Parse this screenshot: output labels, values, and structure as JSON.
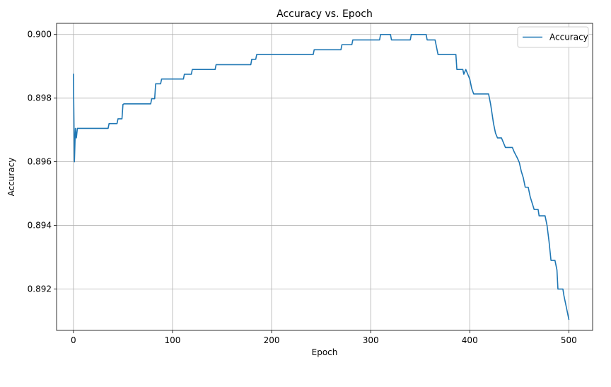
{
  "chart_data": {
    "type": "line",
    "title": "Accuracy vs. Epoch",
    "xlabel": "Epoch",
    "ylabel": "Accuracy",
    "xlim": [
      -17,
      524
    ],
    "ylim": [
      0.8907,
      0.90035
    ],
    "xticks": [
      0,
      100,
      200,
      300,
      400,
      500
    ],
    "yticks": [
      0.892,
      0.894,
      0.896,
      0.898,
      0.9
    ],
    "xtick_labels": [
      "0",
      "100",
      "200",
      "300",
      "400",
      "500"
    ],
    "ytick_labels": [
      "0.892",
      "0.894",
      "0.896",
      "0.898",
      "0.900"
    ],
    "grid": true,
    "legend_position": "top-right",
    "series": [
      {
        "name": "Accuracy",
        "color": "#1f77b4",
        "points": [
          [
            0,
            0.89875
          ],
          [
            1,
            0.896
          ],
          [
            2,
            0.89705
          ],
          [
            3,
            0.89675
          ],
          [
            4,
            0.89705
          ],
          [
            35,
            0.89705
          ],
          [
            36,
            0.8972
          ],
          [
            44,
            0.8972
          ],
          [
            45,
            0.89735
          ],
          [
            49,
            0.89735
          ],
          [
            50,
            0.8978
          ],
          [
            51,
            0.89782
          ],
          [
            78,
            0.89782
          ],
          [
            79,
            0.89798
          ],
          [
            82,
            0.89798
          ],
          [
            83,
            0.89845
          ],
          [
            88,
            0.89845
          ],
          [
            89,
            0.8986
          ],
          [
            111,
            0.8986
          ],
          [
            112,
            0.89875
          ],
          [
            119,
            0.89875
          ],
          [
            120,
            0.8989
          ],
          [
            143,
            0.8989
          ],
          [
            144,
            0.89905
          ],
          [
            179,
            0.89905
          ],
          [
            180,
            0.89922
          ],
          [
            184,
            0.89922
          ],
          [
            185,
            0.89937
          ],
          [
            242,
            0.89937
          ],
          [
            243,
            0.89952
          ],
          [
            270,
            0.89952
          ],
          [
            271,
            0.89968
          ],
          [
            281,
            0.89968
          ],
          [
            282,
            0.89983
          ],
          [
            309,
            0.89983
          ],
          [
            310,
            0.9
          ],
          [
            320,
            0.9
          ],
          [
            321,
            0.89983
          ],
          [
            340,
            0.89983
          ],
          [
            341,
            0.9
          ],
          [
            356,
            0.9
          ],
          [
            357,
            0.89983
          ],
          [
            365,
            0.89983
          ],
          [
            367,
            0.89952
          ],
          [
            368,
            0.89937
          ],
          [
            386,
            0.89937
          ],
          [
            387,
            0.8989
          ],
          [
            393,
            0.8989
          ],
          [
            394,
            0.89875
          ],
          [
            396,
            0.8989
          ],
          [
            398,
            0.89875
          ],
          [
            400,
            0.8986
          ],
          [
            402,
            0.8983
          ],
          [
            404,
            0.89813
          ],
          [
            419,
            0.89813
          ],
          [
            421,
            0.89782
          ],
          [
            424,
            0.8972
          ],
          [
            426,
            0.8969
          ],
          [
            428,
            0.89675
          ],
          [
            432,
            0.89675
          ],
          [
            434,
            0.8966
          ],
          [
            436,
            0.89645
          ],
          [
            443,
            0.89645
          ],
          [
            445,
            0.8963
          ],
          [
            448,
            0.89612
          ],
          [
            450,
            0.89598
          ],
          [
            452,
            0.8957
          ],
          [
            454,
            0.8955
          ],
          [
            456,
            0.8952
          ],
          [
            459,
            0.8952
          ],
          [
            461,
            0.8949
          ],
          [
            463,
            0.8947
          ],
          [
            465,
            0.8945
          ],
          [
            469,
            0.8945
          ],
          [
            470,
            0.8943
          ],
          [
            476,
            0.8943
          ],
          [
            478,
            0.894
          ],
          [
            480,
            0.8935
          ],
          [
            482,
            0.8929
          ],
          [
            486,
            0.8929
          ],
          [
            488,
            0.8926
          ],
          [
            489,
            0.892
          ],
          [
            494,
            0.892
          ],
          [
            495,
            0.8918
          ],
          [
            497,
            0.8915
          ],
          [
            500,
            0.89105
          ]
        ]
      }
    ]
  }
}
